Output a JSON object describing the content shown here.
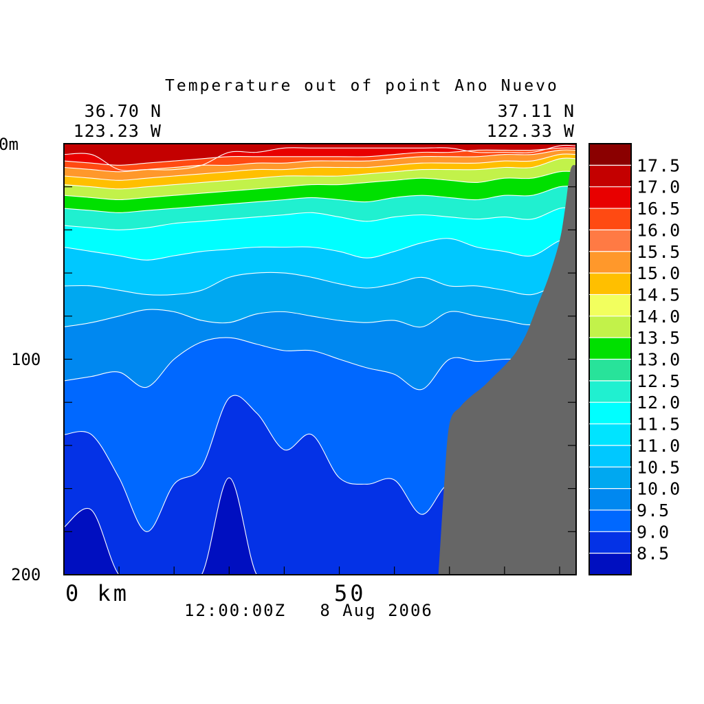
{
  "chart_data": {
    "type": "heatmap",
    "title": "Temperature out of point Ano Nuevo",
    "start_position": {
      "lat": "36.70 N",
      "lon": "123.23 W"
    },
    "end_position": {
      "lat": "37.11 N",
      "lon": "122.33 W"
    },
    "y_axis": {
      "top_label": "0m",
      "ticks": [
        "100",
        "200"
      ],
      "ylim": [
        0,
        200
      ],
      "inverted": true
    },
    "x_axis": {
      "ticks": [
        "0 km",
        "50"
      ],
      "xlim": [
        0,
        93
      ]
    },
    "timestamp": "12:00:00Z   8 Aug 2006",
    "colorbar": {
      "labels": [
        "17.5",
        "17.0",
        "16.5",
        "16.0",
        "15.5",
        "15.0",
        "14.5",
        "14.0",
        "13.5",
        "13.0",
        "12.5",
        "12.0",
        "11.5",
        "11.0",
        "10.5",
        "10.0",
        "9.5",
        "9.0",
        "8.5"
      ],
      "colors": [
        "#8b0000",
        "#c40000",
        "#e80000",
        "#ff4a12",
        "#ff7a44",
        "#ff982b",
        "#ffbf00",
        "#f2ff5e",
        "#c2f24a",
        "#00e000",
        "#28e39a",
        "#20f0d0",
        "#00ffff",
        "#00e4ff",
        "#00c8ff",
        "#00a8f0",
        "#0088f0",
        "#0068ff",
        "#0432e6",
        "#000fc0"
      ]
    },
    "field": {
      "x": [
        0,
        5,
        10,
        15,
        20,
        25,
        30,
        35,
        40,
        45,
        50,
        55,
        60,
        65,
        70,
        75,
        80,
        85,
        90,
        93
      ],
      "layers": [
        {
          "v": 16.8,
          "d": [
            5,
            5,
            12,
            12,
            12,
            10,
            4,
            4,
            2,
            2,
            2,
            2,
            2,
            2,
            2,
            4,
            4,
            4,
            1,
            1
          ]
        },
        {
          "v": 16.0,
          "d": [
            8,
            9,
            10,
            9,
            8,
            7,
            6,
            6,
            6,
            6,
            6,
            6,
            5,
            4,
            4,
            3,
            3,
            3,
            2,
            2
          ]
        },
        {
          "v": 15.3,
          "d": [
            11,
            12,
            13,
            12,
            11,
            10,
            10,
            9,
            9,
            8,
            8,
            8,
            7,
            6,
            6,
            6,
            5,
            5,
            3,
            3
          ]
        },
        {
          "v": 14.6,
          "d": [
            15,
            16,
            17,
            16,
            15,
            14,
            13,
            12,
            12,
            11,
            11,
            11,
            10,
            9,
            9,
            9,
            8,
            8,
            5,
            5
          ]
        },
        {
          "v": 13.8,
          "d": [
            19,
            20,
            21,
            20,
            19,
            18,
            17,
            16,
            15,
            15,
            15,
            14,
            13,
            12,
            12,
            12,
            11,
            11,
            7,
            7
          ]
        },
        {
          "v": 13.1,
          "d": [
            24,
            25,
            26,
            25,
            24,
            23,
            22,
            21,
            20,
            19,
            19,
            18,
            17,
            16,
            17,
            18,
            16,
            16,
            13,
            13
          ]
        },
        {
          "v": 12.3,
          "d": [
            30,
            31,
            32,
            31,
            30,
            29,
            28,
            27,
            26,
            25,
            26,
            27,
            25,
            24,
            25,
            26,
            24,
            24,
            20,
            20
          ]
        },
        {
          "v": 11.6,
          "d": [
            38,
            39,
            40,
            39,
            37,
            36,
            35,
            34,
            33,
            32,
            34,
            36,
            34,
            33,
            34,
            35,
            34,
            35,
            30,
            30
          ]
        },
        {
          "v": 10.8,
          "d": [
            48,
            50,
            52,
            54,
            52,
            50,
            49,
            48,
            48,
            48,
            50,
            53,
            50,
            46,
            44,
            48,
            50,
            52,
            45,
            45
          ]
        },
        {
          "v": 10.2,
          "d": [
            66,
            66,
            68,
            70,
            70,
            68,
            62,
            60,
            60,
            62,
            65,
            67,
            65,
            62,
            66,
            66,
            68,
            70,
            65,
            65
          ]
        },
        {
          "v": 9.7,
          "d": [
            85,
            83,
            80,
            77,
            78,
            82,
            83,
            79,
            78,
            80,
            82,
            83,
            82,
            85,
            78,
            80,
            82,
            84,
            80,
            80
          ]
        },
        {
          "v": 9.2,
          "d": [
            110,
            108,
            106,
            113,
            100,
            92,
            90,
            93,
            96,
            96,
            100,
            104,
            107,
            114,
            100,
            101,
            100,
            100,
            100,
            100
          ]
        },
        {
          "v": 8.7,
          "d": [
            135,
            135,
            155,
            180,
            158,
            150,
            118,
            125,
            142,
            135,
            155,
            158,
            156,
            172,
            158,
            172,
            178,
            180,
            180,
            180
          ]
        },
        {
          "v": 8.3,
          "d": [
            178,
            170,
            200,
            200,
            200,
            200,
            155,
            200,
            200,
            200,
            200,
            200,
            200,
            200,
            200,
            200,
            200,
            200,
            200,
            200
          ]
        }
      ],
      "surface": 17.2
    },
    "land": {
      "x": [
        68,
        69,
        70,
        72,
        74,
        76,
        78,
        80,
        82,
        84,
        86,
        88,
        90,
        91,
        92,
        93
      ],
      "depth": [
        200,
        160,
        130,
        122,
        117,
        113,
        108,
        103,
        97,
        88,
        75,
        62,
        45,
        30,
        12,
        10
      ]
    }
  }
}
